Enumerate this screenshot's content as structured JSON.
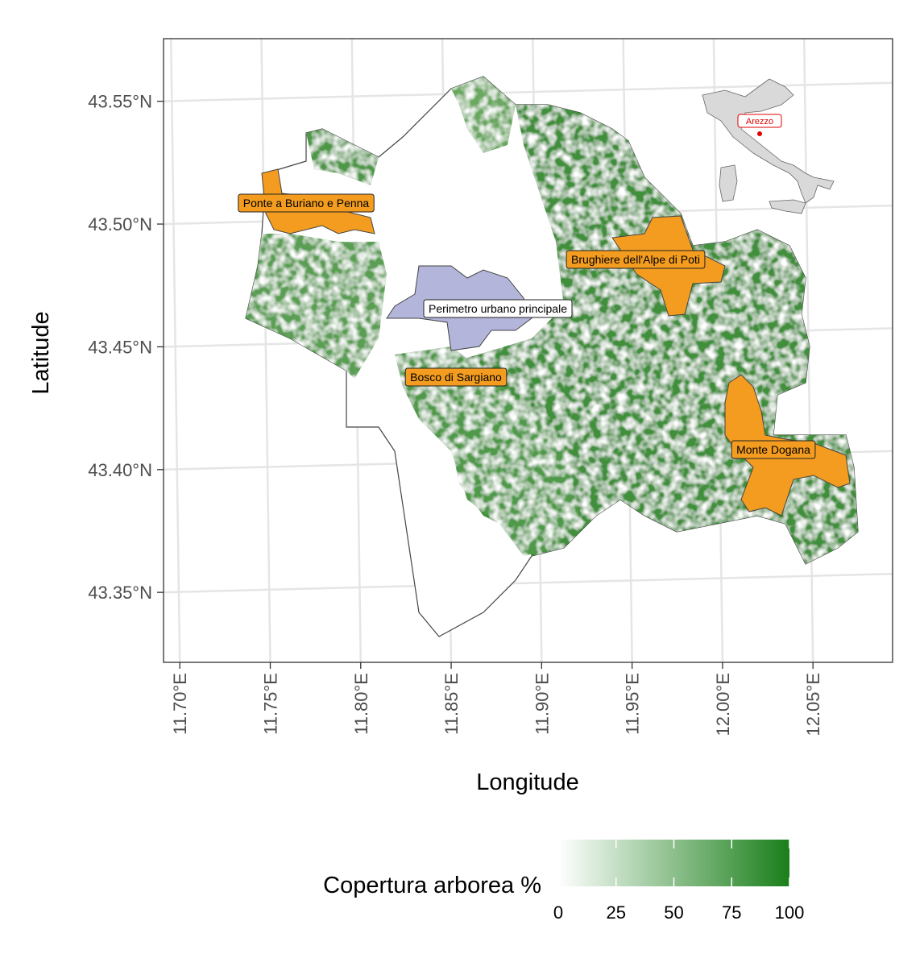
{
  "map": {
    "xlabel": "Longitude",
    "ylabel": "Latitude",
    "xlim": [
      11.691,
      12.094
    ],
    "ylim": [
      43.3215,
      43.5755
    ],
    "xticks": [
      {
        "value": 11.7,
        "label": "11.70°E"
      },
      {
        "value": 11.75,
        "label": "11.75°E"
      },
      {
        "value": 11.8,
        "label": "11.80°E"
      },
      {
        "value": 11.85,
        "label": "11.85°E"
      },
      {
        "value": 11.9,
        "label": "11.90°E"
      },
      {
        "value": 11.95,
        "label": "11.95°E"
      },
      {
        "value": 12.0,
        "label": "12.00°E"
      },
      {
        "value": 12.05,
        "label": "12.05°E"
      }
    ],
    "yticks": [
      {
        "value": 43.35,
        "label": "43.35°N"
      },
      {
        "value": 43.4,
        "label": "43.40°N"
      },
      {
        "value": 43.45,
        "label": "43.45°N"
      },
      {
        "value": 43.5,
        "label": "43.50°N"
      },
      {
        "value": 43.55,
        "label": "43.55°N"
      }
    ],
    "areas": [
      {
        "label": "Ponte a Buriano e Penna",
        "color": "#f39c1f"
      },
      {
        "label": "Brughiere dell'Alpe di Poti",
        "color": "#f39c1f"
      },
      {
        "label": "Perimetro urbano principale",
        "color": "#b3b5da"
      },
      {
        "label": "Bosco di Sargiano",
        "color": "#f39c1f"
      },
      {
        "label": "Monte Dogana",
        "color": "#f39c1f"
      }
    ],
    "inset": {
      "label": "Arezzo"
    },
    "legend": {
      "title": "Copertura arborea %",
      "ticks": [
        0,
        25,
        50,
        75,
        100
      ],
      "lim": [
        0,
        100
      ],
      "colors": [
        "#ffffff",
        "#1a7f1a"
      ]
    }
  }
}
